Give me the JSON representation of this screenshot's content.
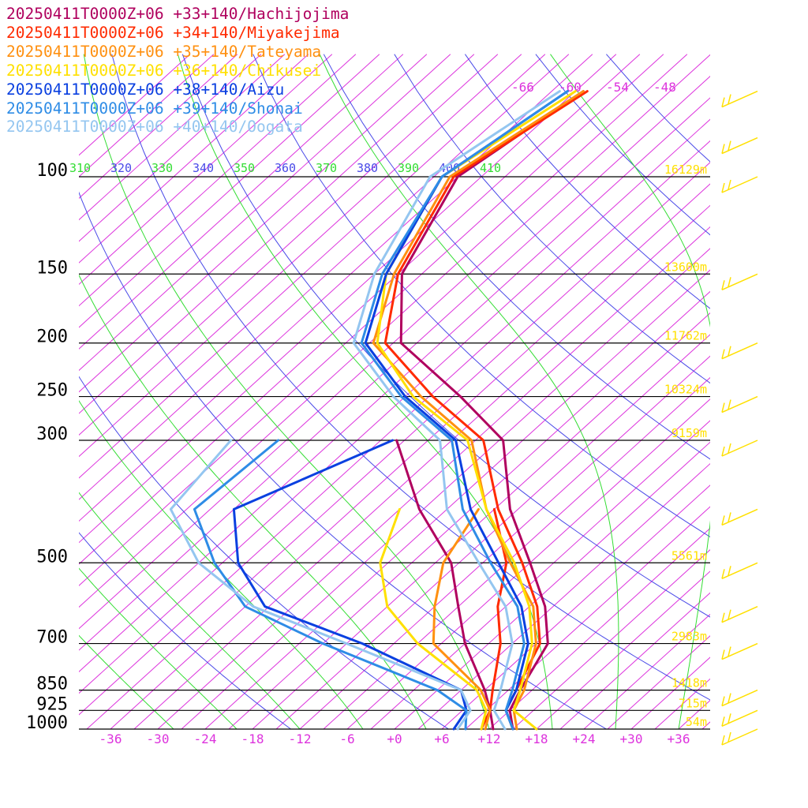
{
  "chart_data": {
    "type": "line",
    "title": "",
    "xlabel": "",
    "ylabel": "",
    "x_unit": "degC",
    "y_unit": "hPa",
    "y_scale": "log",
    "legend_position": "top-left",
    "legend": [
      {
        "label": "20250411T0000Z+06 +33+140/Hachijojima",
        "color": "#b0005e"
      },
      {
        "label": "20250411T0000Z+06 +34+140/Miyakejima",
        "color": "#ff2a00"
      },
      {
        "label": "20250411T0000Z+06 +35+140/Tateyama",
        "color": "#ff9010"
      },
      {
        "label": "20250411T0000Z+06 +36+140/Chikusei",
        "color": "#ffe000"
      },
      {
        "label": "20250411T0000Z+06 +38+140/Aizu",
        "color": "#0a40e0"
      },
      {
        "label": "20250411T0000Z+06 +39+140/Shonai",
        "color": "#2e8ce6"
      },
      {
        "label": "20250411T0000Z+06 +40+140/Oogata",
        "color": "#94c6f0"
      }
    ],
    "x_ticks": [
      "-36",
      "-30",
      "-24",
      "-18",
      "-12",
      "-6",
      "+0",
      "+6",
      "+12",
      "+18",
      "+24",
      "+30",
      "+36"
    ],
    "upper_temp_labels": [
      "-66",
      "-60",
      "-54",
      "-48"
    ],
    "pressure_levels": [
      {
        "p": 100,
        "label": "100",
        "height": "16129m"
      },
      {
        "p": 150,
        "label": "150",
        "height": "13600m"
      },
      {
        "p": 200,
        "label": "200",
        "height": "11762m"
      },
      {
        "p": 250,
        "label": "250",
        "height": "10324m"
      },
      {
        "p": 300,
        "label": "300",
        "height": "9159m"
      },
      {
        "p": 500,
        "label": "500",
        "height": "5561m"
      },
      {
        "p": 700,
        "label": "700",
        "height": "2983m"
      },
      {
        "p": 850,
        "label": "850",
        "height": "1418m"
      },
      {
        "p": 925,
        "label": "925",
        "height": "715m"
      },
      {
        "p": 1000,
        "label": "1000",
        "height": "54m"
      }
    ],
    "theta_e_labels": [
      "310",
      "320",
      "330",
      "340",
      "350",
      "360",
      "370",
      "380",
      "390",
      "400",
      "410"
    ],
    "wind_barb_levels": [
      70,
      85,
      100,
      150,
      200,
      250,
      300,
      400,
      500,
      600,
      700,
      850,
      925,
      1000
    ],
    "series": [
      {
        "name": "20250411T0000Z+06 +33+140/Hachijojima",
        "color": "#b0005e",
        "profiles": [
          {
            "p": [
              1000,
              925,
              850,
              700,
              600,
              500,
              400,
              300,
              250,
              200,
              150,
              100,
              70
            ],
            "t": [
              15,
              12,
              10.5,
              7.5,
              2,
              -6,
              -16,
              -26.5,
              -38,
              -53,
              -62.5,
              -69,
              -65
            ]
          },
          {
            "p": [
              300,
              400,
              500,
              600,
              700,
              850,
              925,
              1000
            ],
            "t": [
              -40,
              -27.5,
              -16,
              -9,
              -3,
              6,
              9.5,
              12.5
            ]
          }
        ]
      },
      {
        "name": "20250411T0000Z+06 +34+140/Miyakejima",
        "color": "#ff2a00",
        "profiles": [
          {
            "p": [
              1000,
              925,
              850,
              700,
              600,
              500,
              400,
              300,
              250,
              200,
              150,
              100,
              70
            ],
            "t": [
              15,
              11.5,
              10,
              6.5,
              1,
              -7,
              -17.5,
              -29,
              -41.5,
              -55,
              -63,
              -69.5,
              -64.5
            ]
          },
          {
            "p": [
              400,
              500,
              600,
              700,
              850,
              925,
              1000
            ],
            "t": [
              -18,
              -9,
              -4,
              1.5,
              7,
              9.5,
              11
            ]
          }
        ]
      },
      {
        "name": "20250411T0000Z+06 +35+140/Tateyama",
        "color": "#ff9010",
        "profiles": [
          {
            "p": [
              1000,
              925,
              850,
              700,
              600,
              500,
              400,
              300,
              250,
              200,
              150,
              100,
              70
            ],
            "t": [
              15.5,
              12.5,
              11,
              6,
              0.5,
              -8.5,
              -19,
              -30.5,
              -43,
              -56.5,
              -63.5,
              -70,
              -65
            ]
          },
          {
            "p": [
              400,
              500,
              600,
              700,
              850,
              925,
              1000
            ],
            "t": [
              -20,
              -17,
              -12,
              -7,
              5.5,
              9.5,
              11.5
            ]
          }
        ]
      },
      {
        "name": "20250411T0000Z+06 +36+140/Chikusei",
        "color": "#ffe000",
        "profiles": [
          {
            "p": [
              1000,
              925,
              850,
              700,
              600,
              500,
              400,
              300,
              250,
              200,
              150,
              100,
              70
            ],
            "t": [
              18,
              12.5,
              10.5,
              5.5,
              0,
              -8,
              -19,
              -31,
              -44,
              -56,
              -64.5,
              -71,
              -66
            ]
          },
          {
            "p": [
              400,
              500,
              600,
              700,
              850,
              925,
              1000
            ],
            "t": [
              -30,
              -25,
              -18,
              -9,
              5,
              9,
              11
            ]
          }
        ]
      },
      {
        "name": "20250411T0000Z+06 +38+140/Aizu",
        "color": "#0a40e0",
        "profiles": [
          {
            "p": [
              1000,
              925,
              850,
              700,
              600,
              500,
              400,
              300,
              250,
              200,
              150,
              100,
              70
            ],
            "t": [
              15,
              11.5,
              10,
              5,
              -1,
              -10,
              -21,
              -32.5,
              -45,
              -57.5,
              -64.5,
              -71,
              -67
            ]
          },
          {
            "p": [
              300,
              400,
              500,
              600,
              700,
              850,
              925,
              1000
            ],
            "t": [
              -40.5,
              -51,
              -43,
              -33.5,
              -16,
              3,
              6.5,
              7.5
            ]
          }
        ]
      },
      {
        "name": "20250411T0000Z+06 +39+140/Shonai",
        "color": "#2e8ce6",
        "profiles": [
          {
            "p": [
              1000,
              925,
              850,
              700,
              600,
              500,
              400,
              300,
              250,
              200,
              150,
              100,
              70
            ],
            "t": [
              15,
              11.5,
              9.5,
              4.5,
              -1.5,
              -11,
              -22,
              -33,
              -45.5,
              -58,
              -65,
              -71,
              -67
            ]
          },
          {
            "p": [
              300,
              400,
              500,
              600,
              700,
              850,
              925,
              1000
            ],
            "t": [
              -55,
              -56,
              -46,
              -36,
              -21,
              0,
              6.5,
              9
            ]
          }
        ]
      },
      {
        "name": "20250411T0000Z+06 +40+140/Oogata",
        "color": "#94c6f0",
        "profiles": [
          {
            "p": [
              1000,
              925,
              850,
              700,
              600,
              500,
              400,
              300,
              250,
              200,
              150,
              100,
              70
            ],
            "t": [
              14,
              10,
              8,
              3,
              -3,
              -12.5,
              -24,
              -34.5,
              -46.5,
              -59,
              -66,
              -72.5,
              -68
            ]
          },
          {
            "p": [
              300,
              400,
              500,
              600,
              700,
              850,
              925,
              1000
            ],
            "t": [
              -61,
              -59,
              -48,
              -35,
              -18,
              3,
              7,
              8
            ]
          }
        ]
      }
    ]
  }
}
